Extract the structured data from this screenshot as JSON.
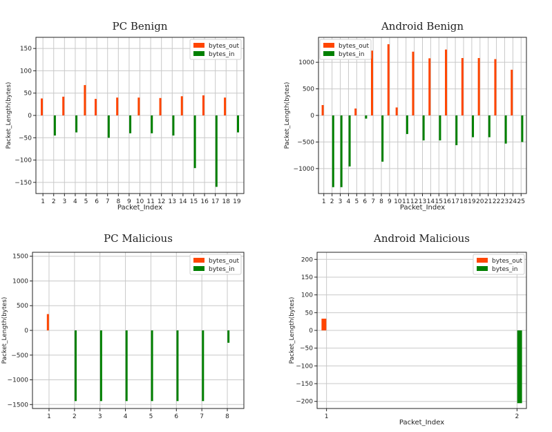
{
  "colors": {
    "bytes_out": "#ff4500",
    "bytes_in": "#008000"
  },
  "chart_data": [
    {
      "type": "bar",
      "title": "PC Benign",
      "xlabel": "Packet_Index",
      "ylabel": "Packet_Length(bytes)",
      "categories": [
        "1",
        "2",
        "3",
        "4",
        "5",
        "6",
        "7",
        "8",
        "9",
        "10",
        "11",
        "12",
        "13",
        "14",
        "15",
        "16",
        "17",
        "18",
        "19"
      ],
      "ylim": [
        -175,
        175
      ],
      "yticks": [
        -150,
        -100,
        -50,
        0,
        50,
        100,
        150
      ],
      "ytick_labels": [
        "−150",
        "−100",
        "−50",
        "0",
        "50",
        "100",
        "150"
      ],
      "grid": true,
      "legend": "top-right",
      "series": [
        {
          "name": "bytes_out",
          "values": [
            38,
            0,
            42,
            0,
            68,
            37,
            0,
            40,
            0,
            40,
            0,
            39,
            0,
            43,
            0,
            45,
            0,
            40,
            0
          ]
        },
        {
          "name": "bytes_in",
          "values": [
            0,
            -45,
            0,
            -38,
            0,
            0,
            -50,
            0,
            -40,
            0,
            -40,
            0,
            -45,
            0,
            -118,
            0,
            -160,
            0,
            -38
          ]
        }
      ]
    },
    {
      "type": "bar",
      "title": "Android Benign",
      "xlabel": "Packet_Index",
      "ylabel": "Packet_Length(bytes)",
      "categories": [
        "1",
        "2",
        "3",
        "4",
        "5",
        "6",
        "7",
        "8",
        "9",
        "10",
        "11",
        "12",
        "13",
        "14",
        "15",
        "16",
        "17",
        "18",
        "19",
        "20",
        "21",
        "22",
        "23",
        "24",
        "25"
      ],
      "ylim": [
        -1470,
        1470
      ],
      "yticks": [
        -1000,
        -500,
        0,
        500,
        1000
      ],
      "ytick_labels": [
        "−1000",
        "−500",
        "0",
        "500",
        "1000"
      ],
      "grid": true,
      "legend": "top-left",
      "series": [
        {
          "name": "bytes_out",
          "values": [
            195,
            0,
            0,
            0,
            130,
            0,
            1220,
            0,
            1340,
            150,
            0,
            1200,
            0,
            1075,
            0,
            1240,
            0,
            1080,
            0,
            1080,
            0,
            1060,
            0,
            860,
            0
          ]
        },
        {
          "name": "bytes_in",
          "values": [
            0,
            -1350,
            -1350,
            -960,
            0,
            -60,
            0,
            -870,
            0,
            0,
            -350,
            0,
            -470,
            0,
            -470,
            0,
            -560,
            0,
            -410,
            0,
            -410,
            0,
            -530,
            0,
            -500
          ]
        }
      ]
    },
    {
      "type": "bar",
      "title": "PC Malicious",
      "xlabel": "",
      "ylabel": "Packet_Length(bytes)",
      "categories": [
        "1",
        "2",
        "3",
        "4",
        "5",
        "6",
        "7",
        "8"
      ],
      "ylim": [
        -1580,
        1580
      ],
      "yticks": [
        -1500,
        -1000,
        -500,
        0,
        500,
        1000,
        1500
      ],
      "ytick_labels": [
        "−1500",
        "−1000",
        "−500",
        "0",
        "500",
        "1000",
        "1500"
      ],
      "grid": true,
      "legend": "top-right",
      "series": [
        {
          "name": "bytes_out",
          "values": [
            330,
            0,
            0,
            0,
            0,
            0,
            0,
            0
          ]
        },
        {
          "name": "bytes_in",
          "values": [
            0,
            -1430,
            -1430,
            -1430,
            -1430,
            -1430,
            -1430,
            -250
          ]
        }
      ]
    },
    {
      "type": "bar",
      "title": "Android Malicious",
      "xlabel": "Packet_Index",
      "ylabel": "Packet_Length(bytes)",
      "categories": [
        "1",
        "2"
      ],
      "ylim": [
        -220,
        220
      ],
      "yticks": [
        -200,
        -150,
        -100,
        -50,
        0,
        50,
        100,
        150,
        200
      ],
      "ytick_labels": [
        "−200",
        "−150",
        "−100",
        "−50",
        "0",
        "50",
        "100",
        "150",
        "200"
      ],
      "grid": true,
      "legend": "top-right",
      "series": [
        {
          "name": "bytes_out",
          "values": [
            33,
            0
          ]
        },
        {
          "name": "bytes_in",
          "values": [
            0,
            -205
          ]
        }
      ]
    }
  ]
}
